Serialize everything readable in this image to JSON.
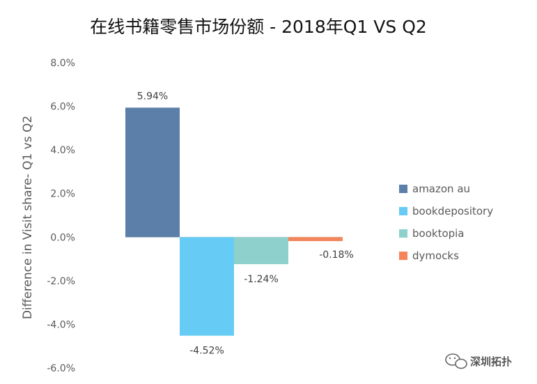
{
  "chart_data": {
    "type": "bar",
    "title": "在线书籍零售市场份额 - 2018年Q1 VS Q2",
    "ylabel": "Difference in Visit share- Q1 vs Q2",
    "ylim": [
      -6.0,
      8.0
    ],
    "yticks": [
      "8.0%",
      "6.0%",
      "4.0%",
      "2.0%",
      "0.0%",
      "-2.0%",
      "-4.0%",
      "-6.0%"
    ],
    "ytick_values": [
      8,
      6,
      4,
      2,
      0,
      -2,
      -4,
      -6
    ],
    "grid": false,
    "legend_position": "right",
    "series": [
      {
        "name": "amazon au",
        "value": 5.94,
        "label": "5.94%",
        "color": "#5b7fa8"
      },
      {
        "name": "bookdepository",
        "value": -4.52,
        "label": "-4.52%",
        "color": "#66ccf5"
      },
      {
        "name": "booktopia",
        "value": -1.24,
        "label": "-1.24%",
        "color": "#8ed1cc"
      },
      {
        "name": "dymocks",
        "value": -0.18,
        "label": "-0.18%",
        "color": "#f4845a"
      }
    ]
  },
  "watermark": {
    "text": "深圳拓扑",
    "icon": "wechat-icon"
  }
}
